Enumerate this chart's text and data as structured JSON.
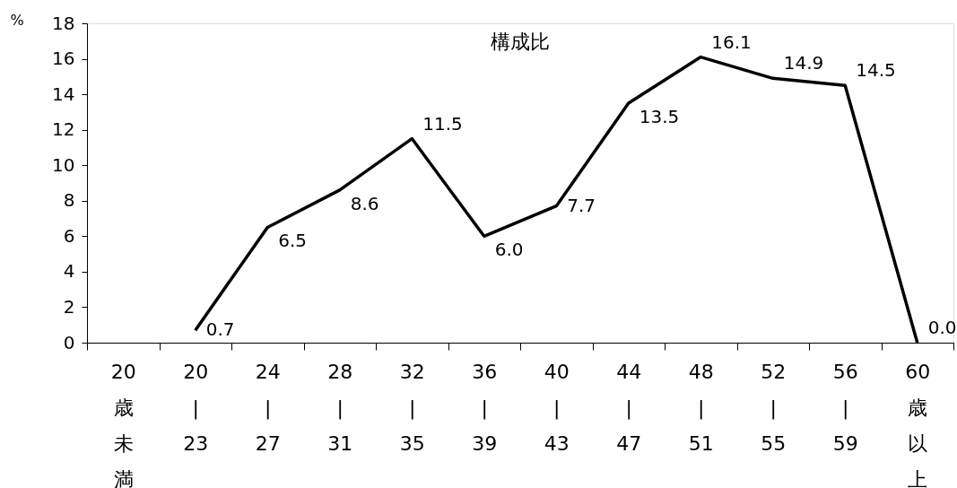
{
  "chart_data": {
    "type": "line",
    "title": "構成比",
    "ylabel": "%",
    "categories": [
      "20歳未満",
      "20\n|\n23",
      "24\n|\n27",
      "28\n|\n31",
      "32\n|\n35",
      "36\n|\n39",
      "40\n|\n43",
      "44\n|\n47",
      "48\n|\n51",
      "52\n|\n55",
      "56\n|\n59",
      "60歳以上"
    ],
    "series": [
      {
        "color": "#000000",
        "values": [
          null,
          0.7,
          6.5,
          8.6,
          11.5,
          6.0,
          7.7,
          13.5,
          16.1,
          14.9,
          14.5,
          0.0
        ],
        "value_labels": [
          null,
          "0.7",
          "6.5",
          "8.6",
          "11.5",
          "6.0",
          "7.7",
          "13.5",
          "16.1",
          "14.9",
          "14.5",
          "0.0"
        ]
      }
    ],
    "ylim": [
      0,
      18
    ],
    "yticks": [
      0,
      2,
      4,
      6,
      8,
      10,
      12,
      14,
      16,
      18
    ],
    "grid": false,
    "legend": false,
    "marker": "none",
    "line_style": "solid"
  }
}
